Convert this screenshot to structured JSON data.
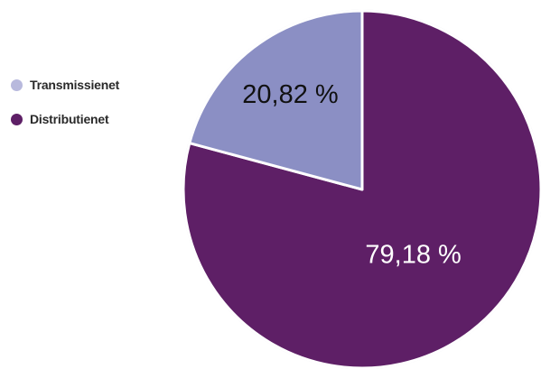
{
  "chart_data": {
    "type": "pie",
    "slices": [
      {
        "label": "Transmissienet",
        "value": 20.82,
        "value_label": "20,82 %",
        "color": "#8b8fc4",
        "legend_color": "#b8b9dd",
        "text_color": "#111111"
      },
      {
        "label": "Distributienet",
        "value": 79.18,
        "value_label": "79,18 %",
        "color": "#5e1f66",
        "legend_color": "#5e1f66",
        "text_color": "#ffffff"
      }
    ],
    "start": "12 o'clock",
    "direction": "clockwise",
    "legend_position": "left",
    "slice_border_color": "#ffffff",
    "outer_border_color": "#e3e3ea"
  }
}
